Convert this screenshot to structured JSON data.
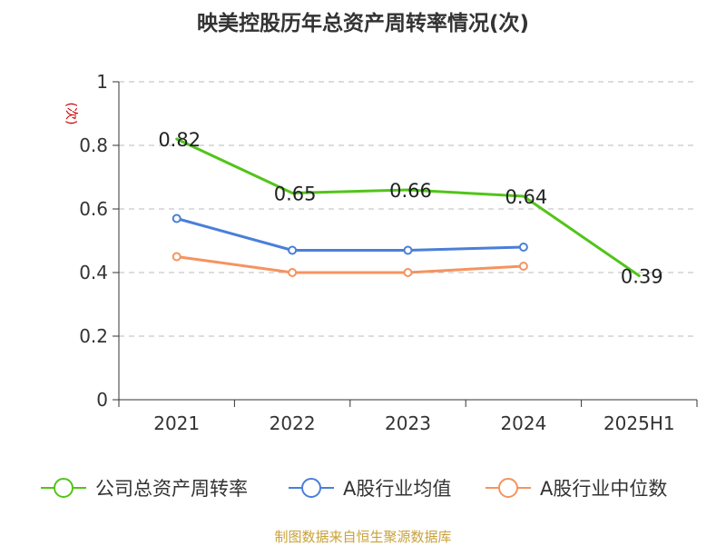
{
  "chart_data": {
    "type": "line",
    "title": "映美控股历年总资产周转率情况(次)",
    "ylabel": "(次)",
    "xlabel": "",
    "categories": [
      "2021",
      "2022",
      "2023",
      "2024",
      "2025H1"
    ],
    "ylim": [
      0,
      1
    ],
    "yticks": [
      0,
      0.2,
      0.4,
      0.6,
      0.8,
      1
    ],
    "ytick_labels": [
      "0",
      "0.2",
      "0.4",
      "0.6",
      "0.8",
      "1"
    ],
    "grid": true,
    "legend_position": "bottom",
    "series": [
      {
        "name": "公司总资产周转率",
        "color": "#52c41a",
        "values": [
          0.82,
          0.65,
          0.66,
          0.64,
          0.39
        ],
        "labels": [
          "0.82",
          "0.65",
          "0.66",
          "0.64",
          "0.39"
        ],
        "markers": false
      },
      {
        "name": "A股行业均值",
        "color": "#4a7fd9",
        "values": [
          0.57,
          0.47,
          0.47,
          0.48,
          null
        ],
        "markers": true
      },
      {
        "name": "A股行业中位数",
        "color": "#f59360",
        "values": [
          0.45,
          0.4,
          0.4,
          0.42,
          null
        ],
        "markers": true
      }
    ]
  },
  "source_note": "制图数据来自恒生聚源数据库"
}
